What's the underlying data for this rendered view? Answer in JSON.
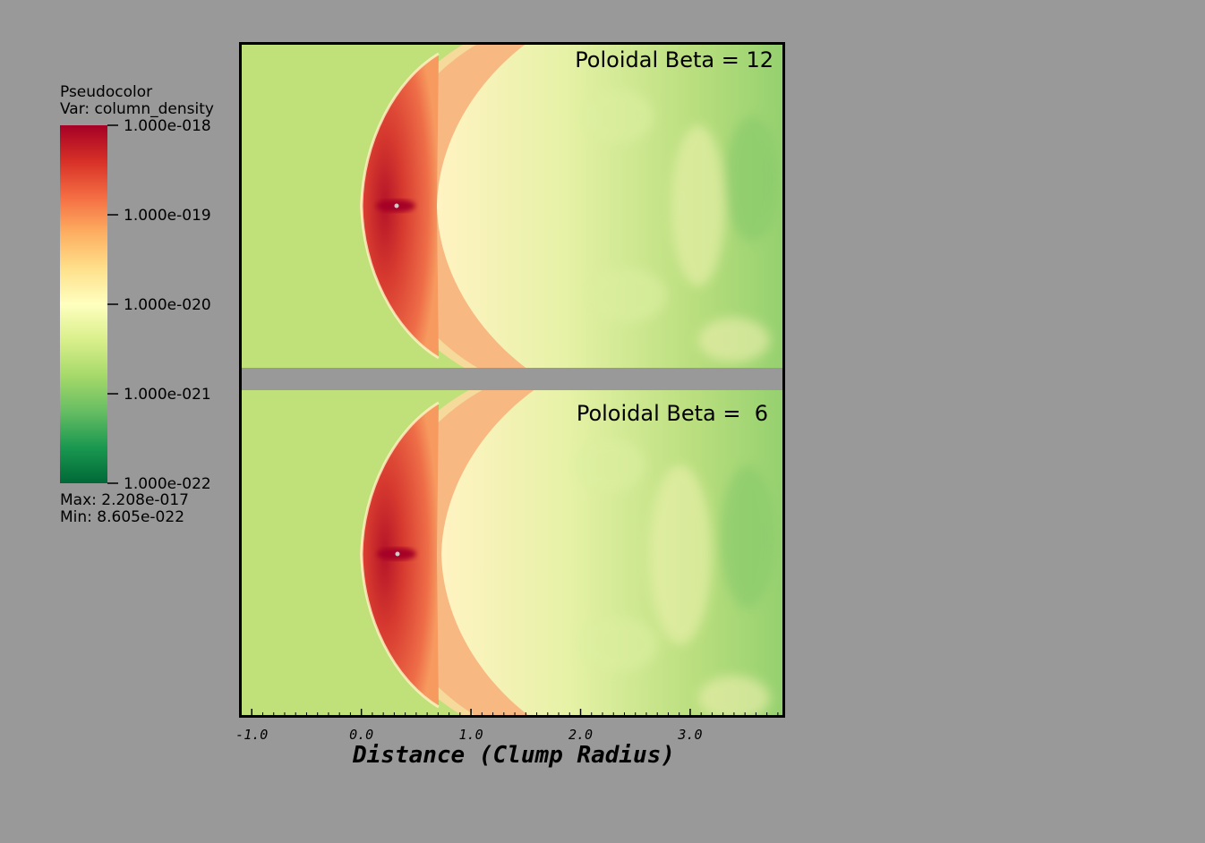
{
  "colors": {
    "background": "#999999",
    "colormap": [
      "#006837",
      "#1a9850",
      "#66bd63",
      "#a6d96a",
      "#d9ef8b",
      "#ffffbf",
      "#fee08b",
      "#fdae61",
      "#f46d43",
      "#d73027",
      "#a50026"
    ]
  },
  "legend": {
    "title": "Pseudocolor",
    "var_label": "Var: column_density",
    "max_label": "Max:  2.208e-017",
    "min_label": "Min:  8.605e-022",
    "ticks": [
      {
        "label": "1.000e-018",
        "pos": 1.0
      },
      {
        "label": "1.000e-019",
        "pos": 0.75
      },
      {
        "label": "1.000e-020",
        "pos": 0.5
      },
      {
        "label": "1.000e-021",
        "pos": 0.25
      },
      {
        "label": "1.000e-022",
        "pos": 0.0
      }
    ]
  },
  "chart_data": {
    "type": "heatmap",
    "variable": "column_density",
    "scale": "log",
    "color_range": [
      1e-22,
      1e-18
    ],
    "max": "2.208e-017",
    "min": "8.605e-022",
    "xlabel": "Distance (Clump Radius)",
    "xlim": [
      -1.1,
      3.85
    ],
    "x_ticks": [
      -1.0,
      0.0,
      1.0,
      2.0,
      3.0
    ],
    "x_tick_labels": [
      "-1.0",
      "0.0",
      "1.0",
      "2.0",
      "3.0"
    ],
    "panels": [
      {
        "label": "Poloidal Beta = 12"
      },
      {
        "label": "Poloidal Beta =  6"
      }
    ]
  }
}
